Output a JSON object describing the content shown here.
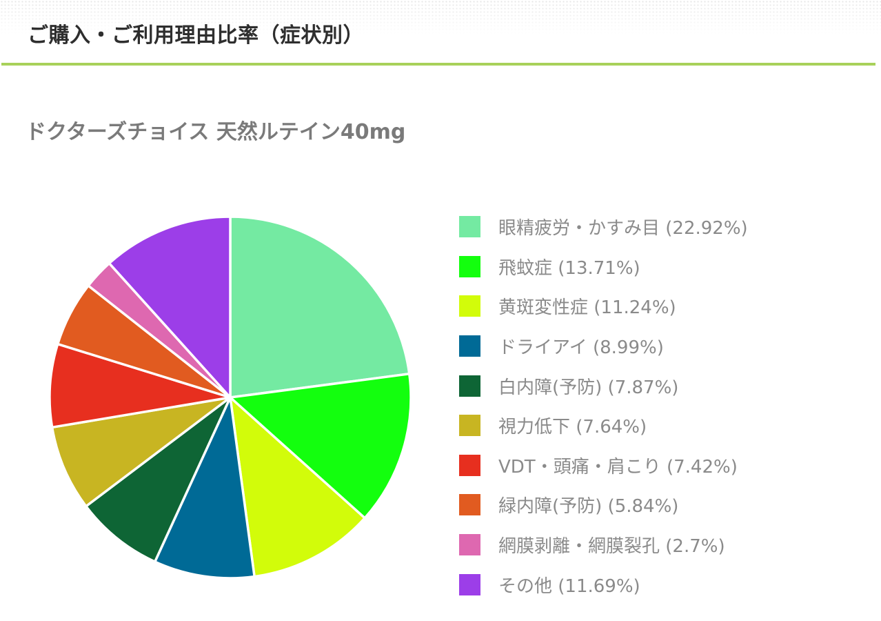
{
  "header": {
    "title": "ご購入・ご利用理由比率（症状別）"
  },
  "chart_data": {
    "type": "pie",
    "title": "ドクターズチョイス 天然ルテイン40mg",
    "start_angle_deg": 0,
    "direction": "clockwise",
    "legend_position": "right",
    "slices": [
      {
        "label": "眼精疲労・かすみ目",
        "value": 22.92,
        "legend": "眼精疲労・かすみ目 (22.92%)",
        "color": "#74eaa2"
      },
      {
        "label": "飛蚊症",
        "value": 13.71,
        "legend": "飛蚊症 (13.71%)",
        "color": "#13ff0e"
      },
      {
        "label": "黄斑変性症",
        "value": 11.24,
        "legend": "黄斑変性症 (11.24%)",
        "color": "#d2fc0a"
      },
      {
        "label": "ドライアイ",
        "value": 8.99,
        "legend": "ドライアイ (8.99%)",
        "color": "#006a96"
      },
      {
        "label": "白内障(予防)",
        "value": 7.87,
        "legend": "白内障(予防) (7.87%)",
        "color": "#0e6535"
      },
      {
        "label": "視力低下",
        "value": 7.64,
        "legend": "視力低下 (7.64%)",
        "color": "#c8b522"
      },
      {
        "label": "VDT・頭痛・肩こり",
        "value": 7.42,
        "legend": "VDT・頭痛・肩こり (7.42%)",
        "color": "#e72f1f"
      },
      {
        "label": "緑内障(予防)",
        "value": 5.84,
        "legend": "緑内障(予防) (5.84%)",
        "color": "#e15b20"
      },
      {
        "label": "網膜剥離・網膜裂孔",
        "value": 2.7,
        "legend": "網膜剥離・網膜裂孔 (2.7%)",
        "color": "#de68b0"
      },
      {
        "label": "その他",
        "value": 11.69,
        "legend": "その他 (11.69%)",
        "color": "#9c3ee8"
      }
    ]
  }
}
